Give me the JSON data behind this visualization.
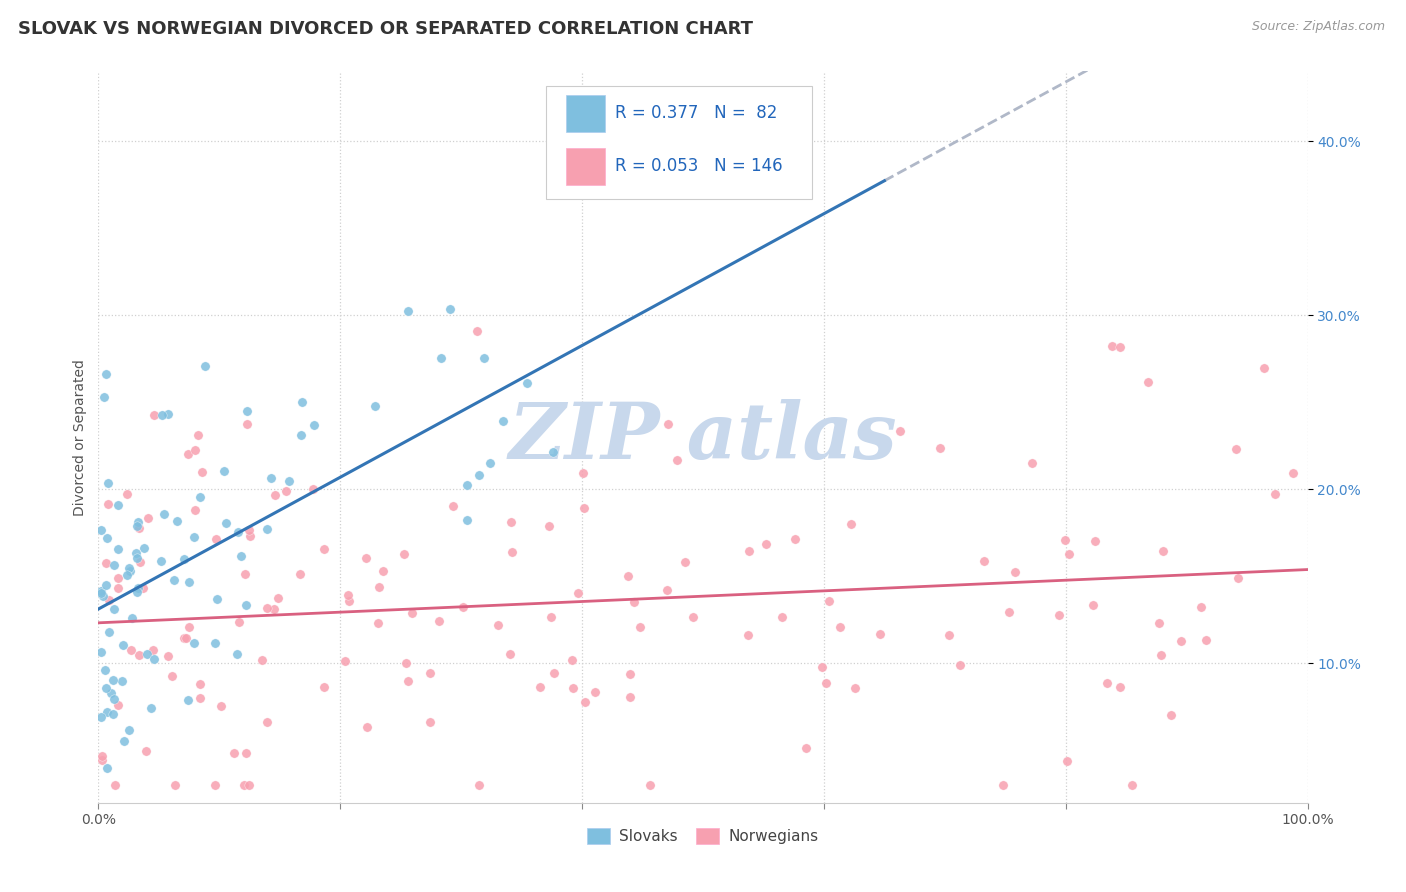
{
  "title": "SLOVAK VS NORWEGIAN DIVORCED OR SEPARATED CORRELATION CHART",
  "source_text": "Source: ZipAtlas.com",
  "ylabel": "Divorced or Separated",
  "x_min": 0.0,
  "x_max": 1.0,
  "y_min": 0.02,
  "y_max": 0.44,
  "x_ticks": [
    0.0,
    0.2,
    0.4,
    0.6,
    0.8,
    1.0
  ],
  "x_tick_labels": [
    "0.0%",
    "",
    "",
    "",
    "",
    "100.0%"
  ],
  "y_ticks": [
    0.1,
    0.2,
    0.3,
    0.4
  ],
  "y_tick_labels": [
    "10.0%",
    "20.0%",
    "30.0%",
    "40.0%"
  ],
  "slovak_color": "#7fbfdf",
  "norwegian_color": "#f7a0b0",
  "slovak_line_color": "#3375b5",
  "norwegian_line_color": "#d96080",
  "dashed_line_color": "#b0b8c8",
  "slovak_R": 0.377,
  "slovak_N": 82,
  "norwegian_R": 0.053,
  "norwegian_N": 146,
  "background_color": "#ffffff",
  "grid_color": "#d0d0d0",
  "title_fontsize": 13,
  "axis_label_fontsize": 10,
  "tick_fontsize": 10,
  "watermark_color": "#c8d8ec",
  "slovak_seed": 42,
  "norwegian_seed": 99
}
